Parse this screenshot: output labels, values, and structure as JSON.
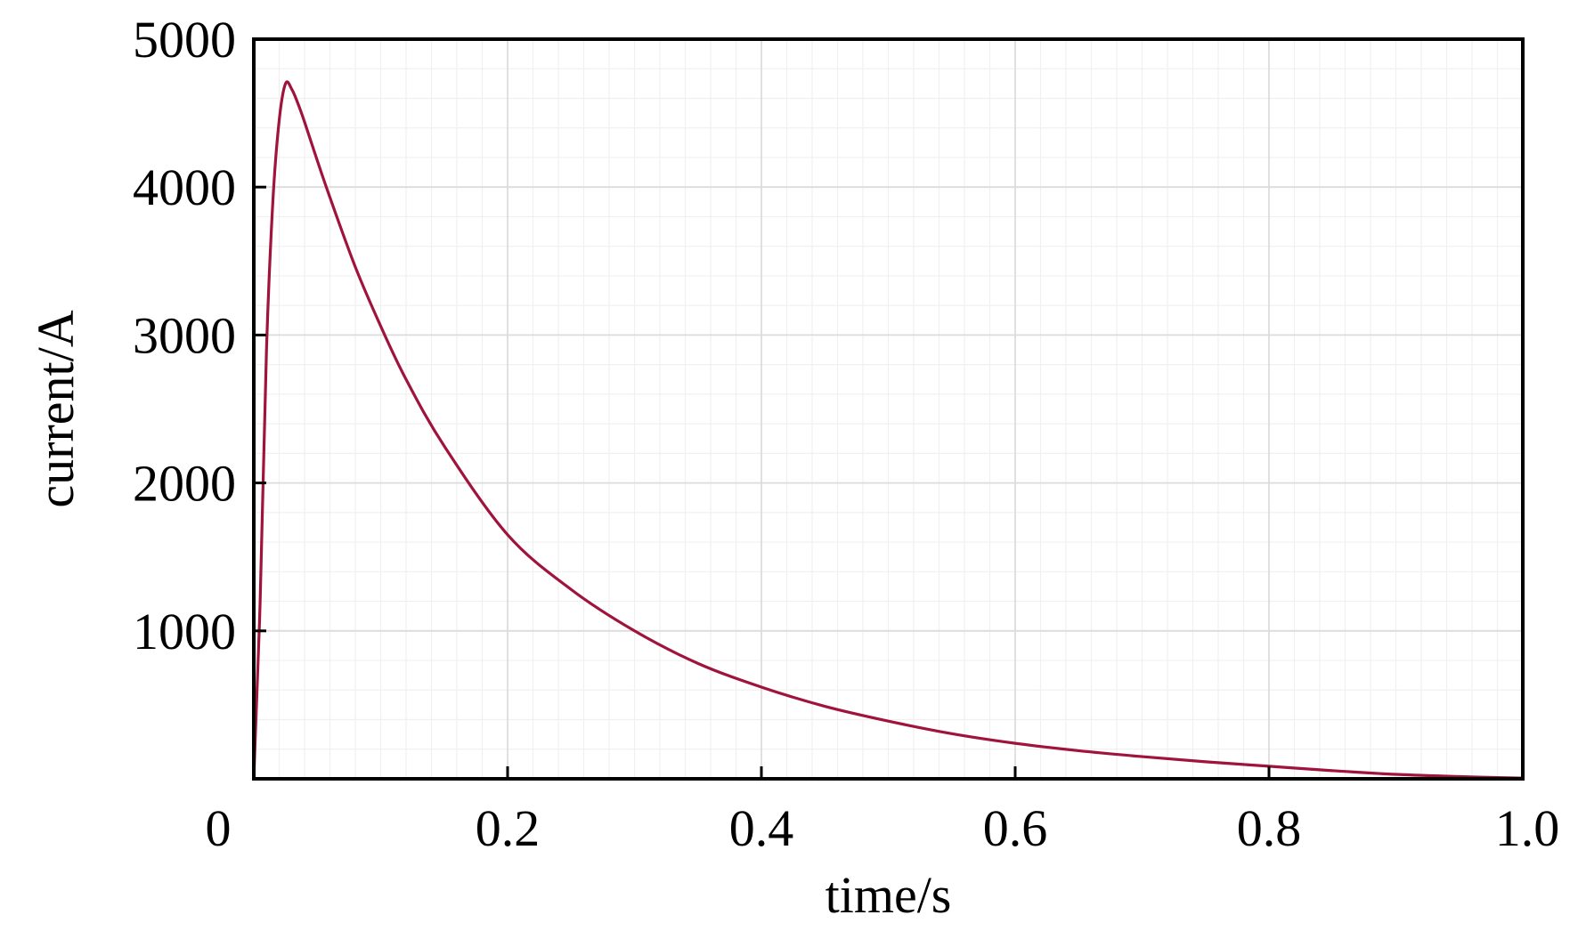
{
  "chart_data": {
    "type": "line",
    "title": "",
    "xlabel": "time/s",
    "ylabel": "current/A",
    "xlim": [
      0,
      1.0
    ],
    "ylim": [
      0,
      5000
    ],
    "x_ticks": [
      "0",
      "0.2",
      "0.4",
      "0.6",
      "0.8",
      "1.0"
    ],
    "x_tick_values": [
      0,
      0.2,
      0.4,
      0.6,
      0.8,
      1.0
    ],
    "y_ticks": [
      "1000",
      "2000",
      "3000",
      "4000",
      "5000"
    ],
    "y_tick_values": [
      1000,
      2000,
      3000,
      4000,
      5000
    ],
    "grid": true,
    "series": [
      {
        "color": "#a0133c",
        "x": [
          0,
          0.005,
          0.01,
          0.015,
          0.02,
          0.025,
          0.03,
          0.035,
          0.04,
          0.05,
          0.06,
          0.08,
          0.1,
          0.12,
          0.15,
          0.2,
          0.25,
          0.3,
          0.35,
          0.4,
          0.45,
          0.5,
          0.55,
          0.6,
          0.65,
          0.7,
          0.75,
          0.8,
          0.85,
          0.9,
          0.95,
          1.0
        ],
        "y": [
          0,
          1200,
          2900,
          3900,
          4450,
          4700,
          4660,
          4560,
          4440,
          4180,
          3930,
          3460,
          3060,
          2700,
          2250,
          1650,
          1280,
          1000,
          780,
          620,
          490,
          390,
          305,
          240,
          190,
          150,
          115,
          85,
          55,
          30,
          15,
          5
        ]
      }
    ]
  }
}
